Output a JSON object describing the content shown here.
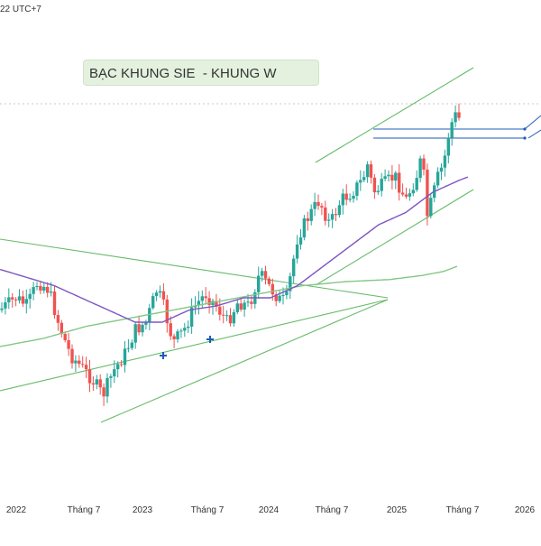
{
  "timezone_label": "22 UTC+7",
  "chart_data": {
    "type": "candlestick",
    "title": "BẠC KHUNG SIE  - KHUNG W",
    "xlabel": "",
    "ylabel": "",
    "x_tick_labels": [
      "2022",
      "Tháng 7",
      "2023",
      "Tháng 7",
      "2024",
      "Tháng 7",
      "2025",
      "Tháng 7",
      "2026"
    ],
    "grid": false,
    "colors": {
      "up": "#26a69a",
      "down": "#ef5350",
      "ma_fast": "#7e57c2",
      "ma_slow": "#81c784",
      "trendline": "#66bb6a",
      "horizontal_level": "#1e5bb8",
      "title_box_bg": "#e3f1de"
    },
    "series": [
      {
        "name": "price",
        "anchors": [
          [
            0,
            0.63
          ],
          [
            0.03,
            0.6
          ],
          [
            0.05,
            0.62
          ],
          [
            0.07,
            0.56
          ],
          [
            0.09,
            0.58
          ],
          [
            0.11,
            0.67
          ],
          [
            0.13,
            0.74
          ],
          [
            0.15,
            0.77
          ],
          [
            0.17,
            0.8
          ],
          [
            0.19,
            0.84
          ],
          [
            0.21,
            0.78
          ],
          [
            0.23,
            0.74
          ],
          [
            0.25,
            0.68
          ],
          [
            0.27,
            0.66
          ],
          [
            0.29,
            0.58
          ],
          [
            0.3,
            0.61
          ],
          [
            0.32,
            0.71
          ],
          [
            0.34,
            0.68
          ],
          [
            0.36,
            0.62
          ],
          [
            0.38,
            0.59
          ],
          [
            0.4,
            0.62
          ],
          [
            0.42,
            0.66
          ],
          [
            0.44,
            0.61
          ],
          [
            0.46,
            0.62
          ],
          [
            0.48,
            0.54
          ],
          [
            0.49,
            0.56
          ],
          [
            0.52,
            0.61
          ],
          [
            0.53,
            0.6
          ],
          [
            0.55,
            0.45
          ],
          [
            0.57,
            0.4
          ],
          [
            0.59,
            0.36
          ],
          [
            0.61,
            0.42
          ],
          [
            0.63,
            0.36
          ],
          [
            0.65,
            0.34
          ],
          [
            0.67,
            0.31
          ],
          [
            0.68,
            0.27
          ],
          [
            0.69,
            0.34
          ],
          [
            0.71,
            0.32
          ],
          [
            0.73,
            0.3
          ],
          [
            0.75,
            0.36
          ],
          [
            0.77,
            0.3
          ],
          [
            0.78,
            0.25
          ],
          [
            0.79,
            0.4
          ],
          [
            0.81,
            0.3
          ],
          [
            0.82,
            0.27
          ],
          [
            0.83,
            0.19
          ],
          [
            0.84,
            0.15
          ],
          [
            0.85,
            0.16
          ]
        ]
      },
      {
        "name": "ma_fast",
        "anchors": [
          [
            0,
            0.53
          ],
          [
            0.05,
            0.55
          ],
          [
            0.1,
            0.57
          ],
          [
            0.15,
            0.6
          ],
          [
            0.2,
            0.63
          ],
          [
            0.25,
            0.66
          ],
          [
            0.3,
            0.66
          ],
          [
            0.35,
            0.63
          ],
          [
            0.4,
            0.62
          ],
          [
            0.45,
            0.6
          ],
          [
            0.5,
            0.6
          ],
          [
            0.55,
            0.57
          ],
          [
            0.6,
            0.52
          ],
          [
            0.65,
            0.47
          ],
          [
            0.7,
            0.42
          ],
          [
            0.75,
            0.39
          ],
          [
            0.8,
            0.34
          ],
          [
            0.85,
            0.31
          ],
          [
            0.87,
            0.3
          ]
        ]
      },
      {
        "name": "ma_slow",
        "anchors": [
          [
            0,
            0.72
          ],
          [
            0.08,
            0.7
          ],
          [
            0.16,
            0.67
          ],
          [
            0.24,
            0.65
          ],
          [
            0.32,
            0.63
          ],
          [
            0.4,
            0.61
          ],
          [
            0.48,
            0.59
          ],
          [
            0.56,
            0.57
          ],
          [
            0.64,
            0.56
          ],
          [
            0.72,
            0.555
          ],
          [
            0.78,
            0.545
          ],
          [
            0.82,
            0.535
          ],
          [
            0.85,
            0.52
          ]
        ]
      }
    ]
  }
}
